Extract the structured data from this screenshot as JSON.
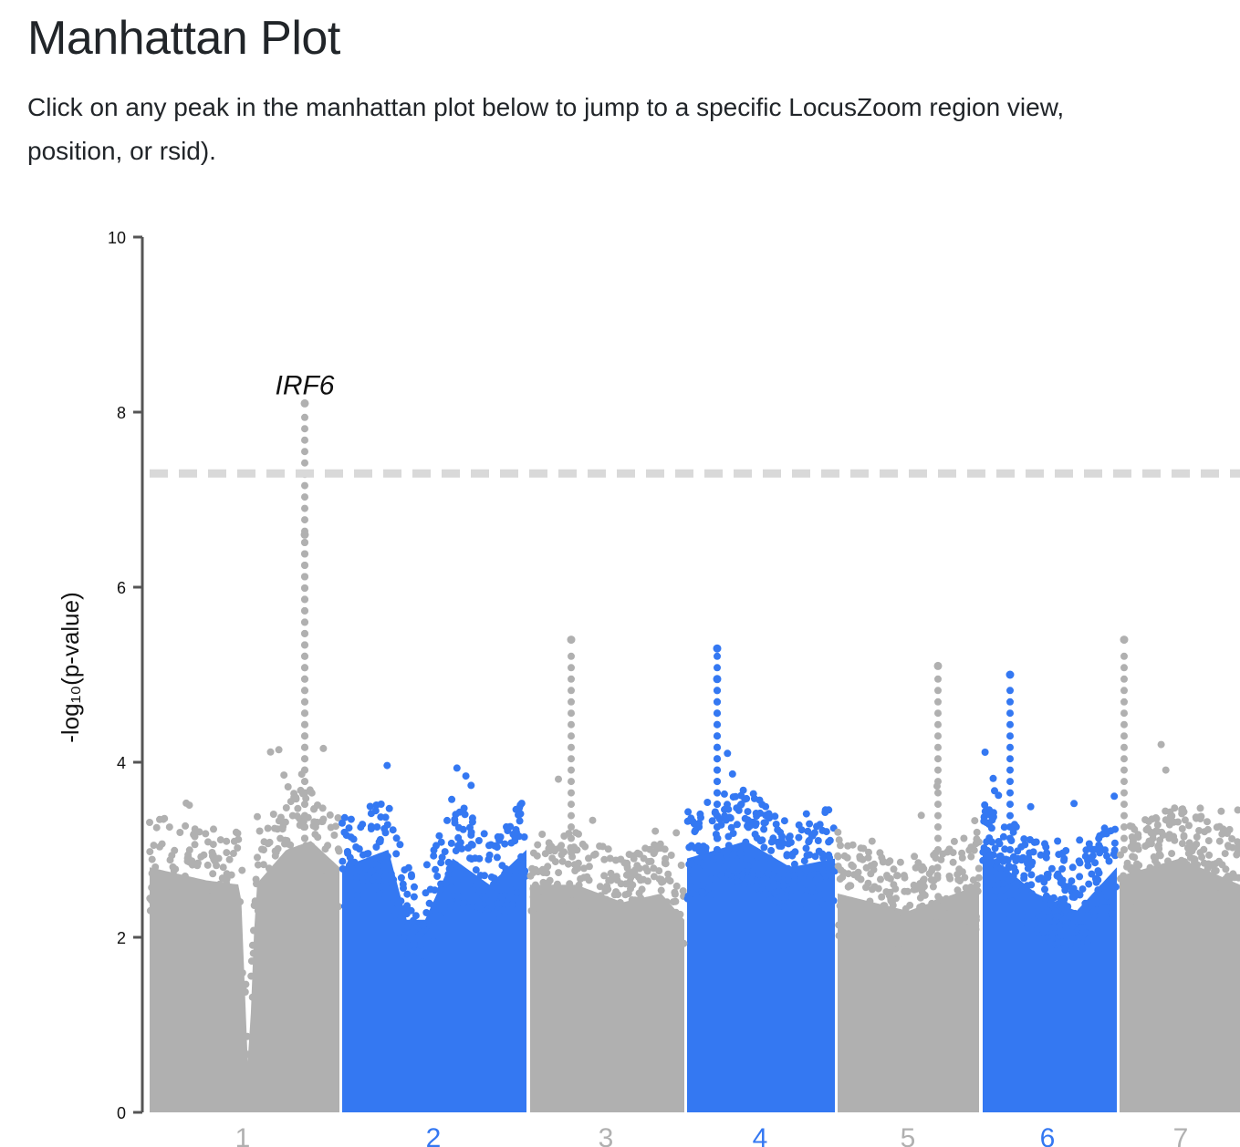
{
  "page": {
    "title": "Manhattan Plot",
    "intro_line1": "Click on any peak in the manhattan plot below to jump to a specific LocusZoom region view,",
    "intro_line2": "position, or rsid)."
  },
  "chart_data": {
    "type": "scatter",
    "subtype": "manhattan",
    "ylabel": "-log₁₀(p-value)",
    "ylim": [
      0,
      10
    ],
    "yticks": [
      0,
      2,
      4,
      6,
      8,
      10
    ],
    "significance_threshold": 7.3,
    "threshold_style": "dashed light gray line",
    "colors": {
      "odd_chromosome": "#b0b0b0",
      "even_chromosome": "#3478f2",
      "threshold": "#d9d9d9",
      "axis": "#555555"
    },
    "chromosomes": [
      {
        "label": "1",
        "color": "#b0b0b0"
      },
      {
        "label": "2",
        "color": "#3478f2"
      },
      {
        "label": "3",
        "color": "#b0b0b0"
      },
      {
        "label": "4",
        "color": "#3478f2"
      },
      {
        "label": "5",
        "color": "#b0b0b0"
      },
      {
        "label": "6",
        "color": "#3478f2"
      },
      {
        "label": "7",
        "color": "#b0b0b0"
      }
    ],
    "peaks": [
      {
        "chromosome": "1",
        "gene": "IRF6",
        "neg_log10_p": 8.1
      },
      {
        "chromosome": "1",
        "gene": "",
        "neg_log10_p": 6.6
      },
      {
        "chromosome": "3",
        "gene": "",
        "neg_log10_p": 5.4
      },
      {
        "chromosome": "4",
        "gene": "",
        "neg_log10_p": 5.3
      },
      {
        "chromosome": "4",
        "gene": "",
        "neg_log10_p": 4.95
      },
      {
        "chromosome": "5",
        "gene": "",
        "neg_log10_p": 5.1
      },
      {
        "chromosome": "6",
        "gene": "",
        "neg_log10_p": 5.0
      },
      {
        "chromosome": "7",
        "gene": "",
        "neg_log10_p": 5.4
      }
    ],
    "annotations": [
      {
        "text": "IRF6",
        "chromosome": "1",
        "neg_log10_p": 8.1
      }
    ],
    "grid": false,
    "legend": "none"
  }
}
